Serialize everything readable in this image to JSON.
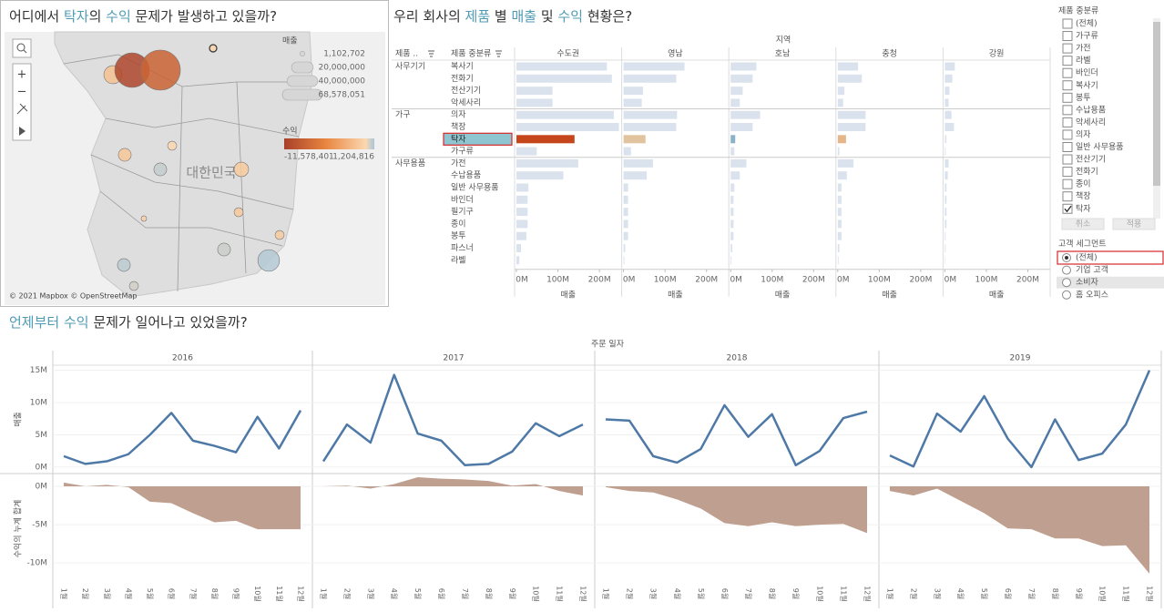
{
  "map": {
    "title_parts": [
      {
        "text": "어디에서 ",
        "color": "#333333"
      },
      {
        "text": "탁자",
        "color": "#4f9bb4"
      },
      {
        "text": "의 ",
        "color": "#333333"
      },
      {
        "text": "수익",
        "color": "#4f9bb4"
      },
      {
        "text": " 문제가 발생하고 있을까?",
        "color": "#333333"
      }
    ],
    "size_legend_title": "매출",
    "size_legend": [
      {
        "value": 1102702,
        "label": "1,102,702"
      },
      {
        "value": 20000000,
        "label": "20,000,000"
      },
      {
        "value": 40000000,
        "label": "40,000,000"
      },
      {
        "value": 68578051,
        "label": "68,578,051"
      }
    ],
    "color_legend_title": "수익",
    "color_min": {
      "value": -11578401,
      "label": "-11,578,401"
    },
    "color_max": {
      "value": 1204816,
      "label": "1,204,816"
    },
    "color_stops": {
      "min": "#a8402a",
      "mid": "#e8843e",
      "zero": "#fbd8b0",
      "max": "#a6c6dc"
    },
    "country_label": "대한민국",
    "attribution": "© 2021 Mapbox © OpenStreetMap",
    "bubbles": [
      {
        "sales": 2300000,
        "profit": -200000
      },
      {
        "sales": 14000000,
        "profit": -1500000
      },
      {
        "sales": 51000000,
        "profit": -11000000
      },
      {
        "sales": 68578051,
        "profit": -8500000
      },
      {
        "sales": 3500000,
        "profit": 0
      },
      {
        "sales": 7000000,
        "profit": -1200000
      },
      {
        "sales": 7000000,
        "profit": 800000
      },
      {
        "sales": 9000000,
        "profit": -900000
      },
      {
        "sales": 3500000,
        "profit": -1000000
      },
      {
        "sales": 1300000,
        "profit": -600000
      },
      {
        "sales": 3500000,
        "profit": -900000
      },
      {
        "sales": 7000000,
        "profit": 700000
      },
      {
        "sales": 20000000,
        "profit": 1000000
      },
      {
        "sales": 7000000,
        "profit": 900000
      },
      {
        "sales": 3500000,
        "profit": 600000
      }
    ]
  },
  "bars": {
    "title_parts": [
      {
        "text": "우리 회사의 ",
        "color": "#333333"
      },
      {
        "text": "제품",
        "color": "#4f9bb4"
      },
      {
        "text": " 별 ",
        "color": "#333333"
      },
      {
        "text": "매출",
        "color": "#4f9bb4"
      },
      {
        "text": " 및 ",
        "color": "#333333"
      },
      {
        "text": "수익",
        "color": "#4f9bb4"
      },
      {
        "text": " 현황은?",
        "color": "#333333"
      }
    ],
    "region_header": "지역",
    "col_headers": [
      "제품 ..",
      "제품 중분류"
    ],
    "groups": [
      {
        "name": "사무기기",
        "items": [
          "복사기",
          "전화기",
          "전산기기",
          "악세사리"
        ]
      },
      {
        "name": "가구",
        "items": [
          "의자",
          "책장",
          "탁자",
          "가구류"
        ]
      },
      {
        "name": "사무용품",
        "items": [
          "가전",
          "수납용품",
          "일반 사무용품",
          "바인더",
          "필기구",
          "종이",
          "봉투",
          "파스너",
          "라벨"
        ]
      }
    ],
    "bar_color": "#dae3ed",
    "regions": [
      {
        "name": "수도권",
        "highlight_color": "#c4461a",
        "values": [
          218,
          230,
          87,
          87,
          235,
          247,
          140,
          49,
          149,
          113,
          29,
          27,
          27,
          27,
          24,
          11,
          7
        ]
      },
      {
        "name": "영남",
        "highlight_color": "#e1c49d",
        "values": [
          147,
          127,
          47,
          44,
          129,
          127,
          53,
          18,
          71,
          56,
          11,
          11,
          11,
          11,
          11,
          4,
          2
        ]
      },
      {
        "name": "호남",
        "highlight_color": "#8ab3c6",
        "values": [
          62,
          53,
          29,
          22,
          71,
          53,
          11,
          9,
          38,
          22,
          9,
          7,
          7,
          7,
          7,
          4,
          2
        ]
      },
      {
        "name": "충청",
        "highlight_color": "#e6b68b",
        "values": [
          49,
          58,
          16,
          13,
          67,
          67,
          20,
          4,
          38,
          22,
          9,
          9,
          9,
          9,
          9,
          4,
          2
        ]
      },
      {
        "name": "강원",
        "highlight_color": "#dfe6ee",
        "values": [
          24,
          18,
          11,
          9,
          16,
          22,
          4,
          2,
          9,
          7,
          4,
          4,
          4,
          4,
          2,
          2,
          1
        ]
      }
    ],
    "xlim": [
      0,
      248
    ],
    "xticks": [
      {
        "value": 0,
        "label": "0M"
      },
      {
        "value": 100,
        "label": "100M"
      },
      {
        "value": 200,
        "label": "200M"
      }
    ],
    "axis_label": "매출"
  },
  "filter": {
    "title": "제품 중분류",
    "items": [
      {
        "label": "(전체)",
        "checked": false
      },
      {
        "label": "가구류",
        "checked": false
      },
      {
        "label": "가전",
        "checked": false
      },
      {
        "label": "라벨",
        "checked": false
      },
      {
        "label": "바인더",
        "checked": false
      },
      {
        "label": "복사기",
        "checked": false
      },
      {
        "label": "봉투",
        "checked": false
      },
      {
        "label": "수납용품",
        "checked": false
      },
      {
        "label": "악세사리",
        "checked": false
      },
      {
        "label": "의자",
        "checked": false
      },
      {
        "label": "일반 사무용품",
        "checked": false
      },
      {
        "label": "전산기기",
        "checked": false
      },
      {
        "label": "전화기",
        "checked": false
      },
      {
        "label": "종이",
        "checked": false
      },
      {
        "label": "책장",
        "checked": false
      },
      {
        "label": "탁자",
        "checked": true
      }
    ],
    "buttons": [
      "취소",
      "적용"
    ],
    "segment_title": "고객 세그먼트",
    "segments": [
      {
        "label": "(전체)",
        "selected": true
      },
      {
        "label": "기업 고객",
        "selected": false
      },
      {
        "label": "소비자",
        "selected": false
      },
      {
        "label": "홈 오피스",
        "selected": false
      }
    ]
  },
  "timeline": {
    "title_parts": [
      {
        "text": "언제부터",
        "color": "#4f9bb4"
      },
      {
        "text": " ",
        "color": "#333333"
      },
      {
        "text": "수익",
        "color": "#4f9bb4"
      },
      {
        "text": " 문제가 일어나고 있었을까?",
        "color": "#333333"
      }
    ],
    "x_header": "주문 일자",
    "years": [
      "2016",
      "2017",
      "2018",
      "2019"
    ],
    "months": [
      "1월",
      "2월",
      "3월",
      "4월",
      "5월",
      "6월",
      "7월",
      "8월",
      "9월",
      "10월",
      "11월",
      "12월"
    ],
    "sales": {
      "axis_label": "매출",
      "color": "#4e79a7",
      "ylim": [
        -1,
        15.8
      ],
      "yticks": [
        {
          "value": 0,
          "label": "0M"
        },
        {
          "value": 5,
          "label": "5M"
        },
        {
          "value": 10,
          "label": "10M"
        },
        {
          "value": 15,
          "label": "15M"
        }
      ],
      "series": [
        [
          1.7,
          0.5,
          0.9,
          2.0,
          5.0,
          8.4,
          4.1,
          3.3,
          2.3,
          7.8,
          2.9,
          8.8
        ],
        [
          0.9,
          6.6,
          3.8,
          14.3,
          5.2,
          4.1,
          0.3,
          0.5,
          2.4,
          6.8,
          4.8,
          6.6
        ],
        [
          7.4,
          7.2,
          1.7,
          0.7,
          2.8,
          9.6,
          4.7,
          8.2,
          0.3,
          2.5,
          7.6,
          8.6
        ],
        [
          1.8,
          0.1,
          8.3,
          5.5,
          11.0,
          4.4,
          0.0,
          7.4,
          1.1,
          2.1,
          6.6,
          15.0
        ]
      ]
    },
    "profit": {
      "axis_label": "수익의 누계 합계",
      "color": "#bf9f8f",
      "ylim": [
        -12.6,
        1.55
      ],
      "yticks": [
        {
          "value": 0,
          "label": "0M"
        },
        {
          "value": -5,
          "label": "-5M"
        },
        {
          "value": -10,
          "label": "-10M"
        }
      ],
      "series": [
        [
          0.5,
          0.0,
          0.2,
          -0.1,
          -2.0,
          -2.2,
          -3.5,
          -4.7,
          -4.5,
          -5.6,
          -5.6,
          -5.6
        ],
        [
          0.0,
          0.1,
          -0.3,
          0.3,
          1.2,
          1.0,
          0.9,
          0.7,
          0.1,
          0.3,
          -0.6,
          -1.2
        ],
        [
          -0.1,
          -0.6,
          -0.8,
          -1.7,
          -2.9,
          -4.8,
          -5.2,
          -4.7,
          -5.2,
          -5.0,
          -4.9,
          -6.1
        ],
        [
          -0.6,
          -1.2,
          -0.3,
          -1.9,
          -3.5,
          -5.5,
          -5.6,
          -6.8,
          -6.8,
          -7.8,
          -7.7,
          -11.4
        ]
      ]
    }
  }
}
